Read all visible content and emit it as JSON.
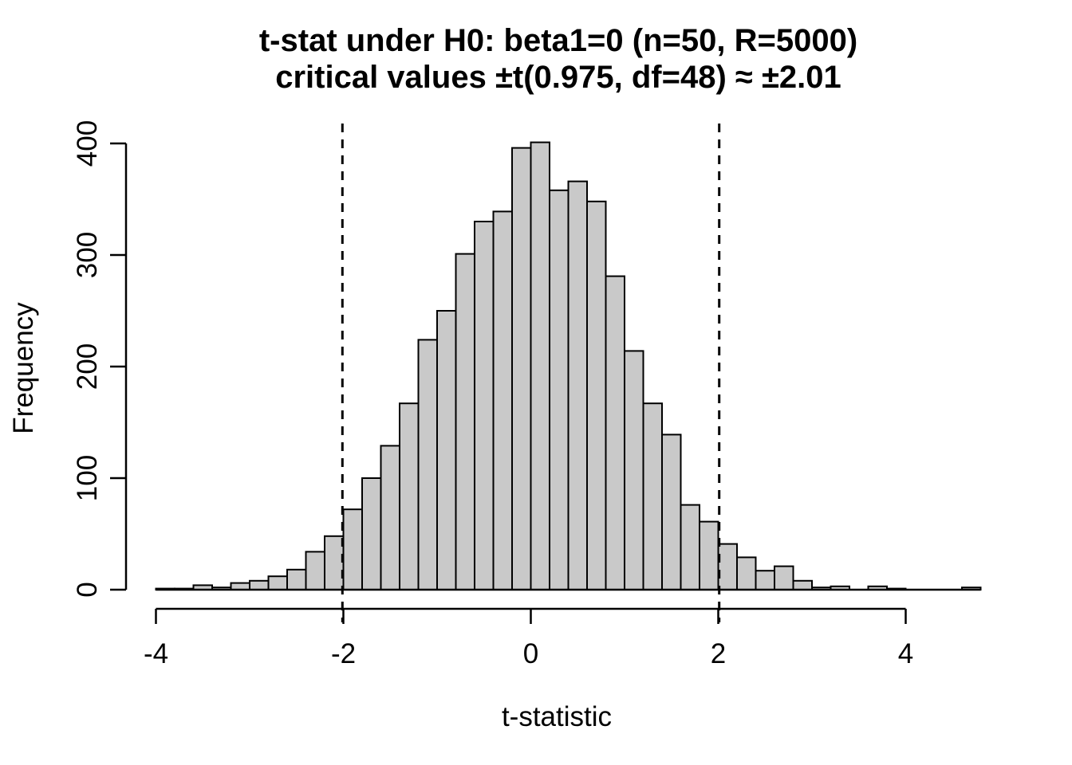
{
  "chart_data": {
    "type": "bar",
    "subtype": "histogram",
    "title_line1": "t-stat under H0: beta1=0 (n=50, R=5000)",
    "title_line2": "critical values ±t(0.975, df=48) ≈ ±2.01",
    "xlabel": "t-statistic",
    "ylabel": "Frequency",
    "bin_start": -4.0,
    "bin_width": 0.2,
    "counts": [
      1,
      1,
      4,
      2,
      6,
      8,
      12,
      18,
      34,
      48,
      72,
      100,
      129,
      167,
      224,
      250,
      301,
      330,
      339,
      396,
      401,
      358,
      366,
      348,
      281,
      214,
      167,
      139,
      76,
      61,
      41,
      29,
      17,
      21,
      8,
      2,
      3,
      0,
      3,
      1,
      0,
      0,
      0,
      2
    ],
    "x_ticks": [
      -4,
      -2,
      0,
      2,
      4
    ],
    "x_tick_labels": [
      "-4",
      "-2",
      "0",
      "2",
      "4"
    ],
    "y_ticks": [
      0,
      100,
      200,
      300,
      400
    ],
    "y_tick_labels": [
      "0",
      "100",
      "200",
      "300",
      "400"
    ],
    "xlim": [
      -4.0,
      4.8
    ],
    "ylim": [
      0,
      400
    ],
    "critical_values": [
      -2.01,
      2.01
    ],
    "grid": "off",
    "legend": "none",
    "bar_fill": "#c9c9c9",
    "bar_stroke": "#000000",
    "line_color": "#000000",
    "background": "#ffffff"
  }
}
